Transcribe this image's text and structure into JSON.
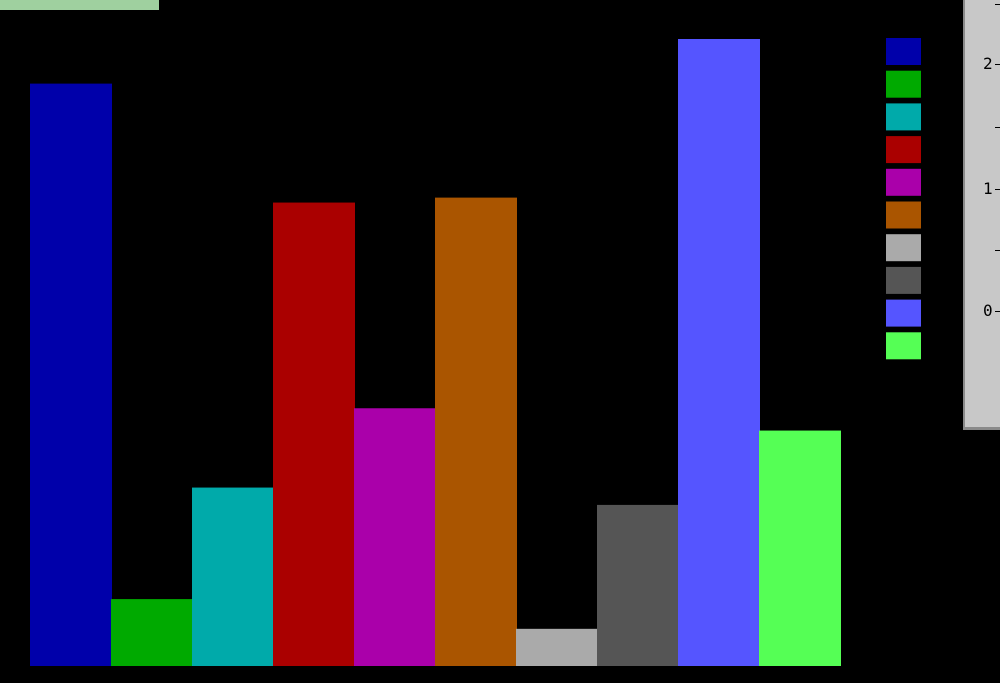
{
  "chart_data": {
    "type": "bar",
    "categories": [
      "",
      "",
      "",
      "",
      "",
      "",
      "",
      "",
      "",
      ""
    ],
    "values": [
      2.35,
      0.27,
      0.72,
      1.87,
      1.04,
      1.89,
      0.15,
      0.65,
      2.53,
      0.95
    ],
    "colors": [
      "#0000aa",
      "#00aa00",
      "#00aaaa",
      "#aa0000",
      "#aa00aa",
      "#aa5500",
      "#aaaaaa",
      "#555555",
      "#5555ff",
      "#55ff55"
    ],
    "ylim": [
      0,
      2.53
    ],
    "grid": false,
    "legend": "top-right"
  },
  "side_panel": {
    "ticks": [
      "2",
      "1",
      "0"
    ]
  }
}
